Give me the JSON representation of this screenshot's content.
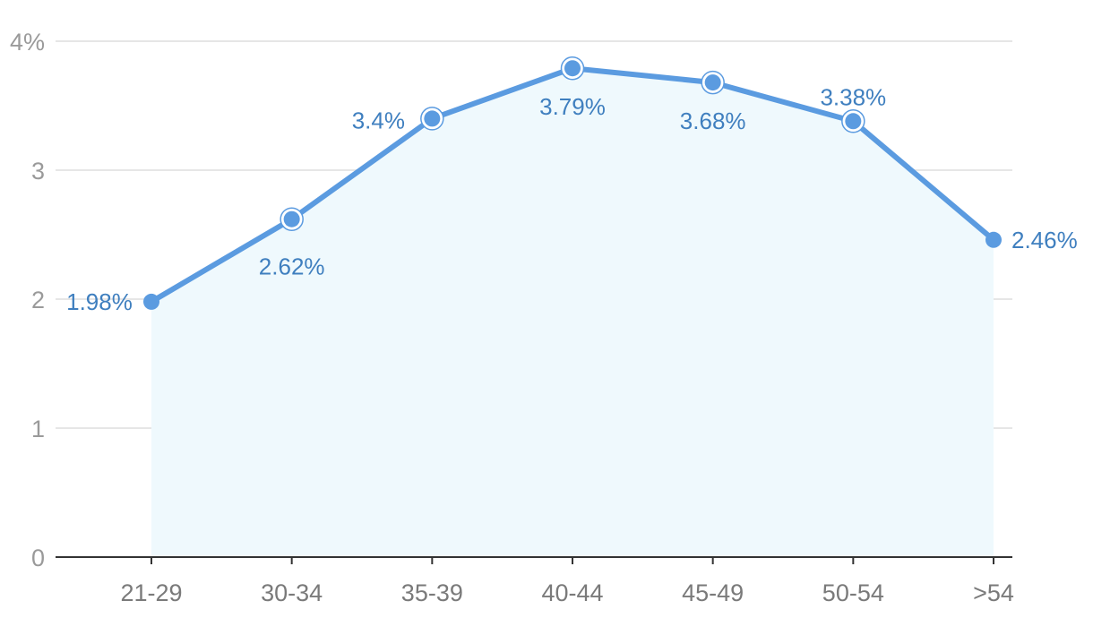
{
  "chart_data": {
    "type": "area",
    "categories": [
      "21-29",
      "30-34",
      "35-39",
      "40-44",
      "45-49",
      "50-54",
      ">54"
    ],
    "series": [
      {
        "values": [
          1.98,
          2.62,
          3.4,
          3.79,
          3.68,
          3.38,
          2.46
        ],
        "data_labels": [
          "1.98%",
          "2.62%",
          "3.4%",
          "3.79%",
          "3.68%",
          "3.38%",
          "2.46%"
        ],
        "color": "#5b9be0",
        "fill_color": "#eff9fd"
      }
    ],
    "ylim": [
      0,
      4
    ],
    "yticks": [
      0,
      1,
      2,
      3,
      4
    ],
    "ytick_labels": [
      "0",
      "1",
      "2",
      "3",
      "4%"
    ],
    "xlabel": "",
    "ylabel": "",
    "grid": true,
    "highlighted_points": [
      "30-34",
      "35-39",
      "40-44",
      "45-49",
      "50-54"
    ],
    "colors": {
      "grid": "#e6e6e6",
      "axis": "#333333",
      "ytick_text": "#9a9a9a",
      "xtick_text": "#7a7a7a",
      "label_text": "#3f7fbf"
    }
  }
}
